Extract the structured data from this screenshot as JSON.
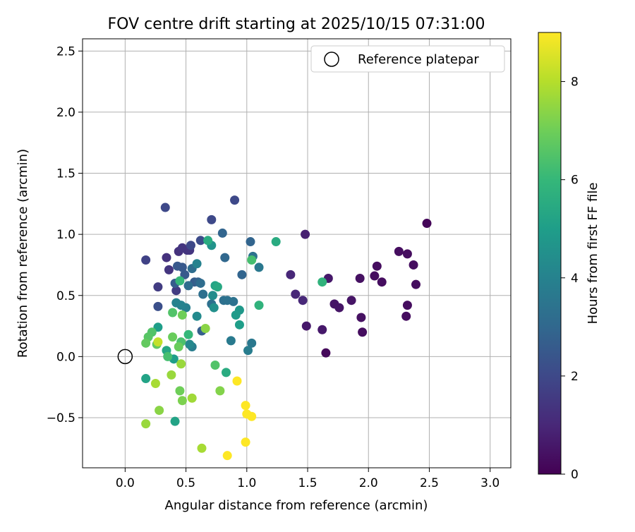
{
  "chart_data": {
    "type": "scatter",
    "title": "FOV centre drift starting at 2025/10/15 07:31:00",
    "xlabel": "Angular distance from reference (arcmin)",
    "ylabel": "Rotation from reference (arcmin)",
    "xlim": [
      -0.35,
      3.17
    ],
    "ylim": [
      -0.91,
      2.6
    ],
    "xticks": [
      0.0,
      0.5,
      1.0,
      1.5,
      2.0,
      2.5,
      3.0
    ],
    "xtick_labels": [
      "0.0",
      "0.5",
      "1.0",
      "1.5",
      "2.0",
      "2.5",
      "3.0"
    ],
    "yticks": [
      -0.5,
      0.0,
      0.5,
      1.0,
      1.5,
      2.0,
      2.5
    ],
    "ytick_labels": [
      "−0.5",
      "0.0",
      "0.5",
      "1.0",
      "1.5",
      "2.0",
      "2.5"
    ],
    "grid": true,
    "legend": {
      "position": "top-right",
      "entries": [
        {
          "label": "Reference platepar",
          "marker": "open-circle"
        }
      ]
    },
    "reference_point": {
      "x": 0.0,
      "y": 0.0
    },
    "colorbar": {
      "label": "Hours from first FF file",
      "range": [
        0,
        9
      ],
      "ticks": [
        0,
        2,
        4,
        6,
        8
      ],
      "tick_labels": [
        "0",
        "2",
        "4",
        "6",
        "8"
      ],
      "colormap": [
        "#440154",
        "#482878",
        "#3e4989",
        "#31688e",
        "#26828e",
        "#1f9e89",
        "#35b779",
        "#6ece58",
        "#b5de2b",
        "#fde725"
      ]
    },
    "points": [
      {
        "x": 2.48,
        "y": 1.09,
        "t": 0.1
      },
      {
        "x": 1.65,
        "y": 0.03,
        "t": 0.2
      },
      {
        "x": 2.32,
        "y": 0.84,
        "t": 0.3
      },
      {
        "x": 2.25,
        "y": 0.86,
        "t": 0.3
      },
      {
        "x": 2.37,
        "y": 0.75,
        "t": 0.3
      },
      {
        "x": 2.07,
        "y": 0.74,
        "t": 0.3
      },
      {
        "x": 2.05,
        "y": 0.66,
        "t": 0.3
      },
      {
        "x": 2.11,
        "y": 0.61,
        "t": 0.3
      },
      {
        "x": 2.39,
        "y": 0.59,
        "t": 0.3
      },
      {
        "x": 1.93,
        "y": 0.64,
        "t": 0.4
      },
      {
        "x": 2.32,
        "y": 0.42,
        "t": 0.3
      },
      {
        "x": 2.31,
        "y": 0.33,
        "t": 0.3
      },
      {
        "x": 1.95,
        "y": 0.2,
        "t": 0.3
      },
      {
        "x": 1.94,
        "y": 0.32,
        "t": 0.4
      },
      {
        "x": 1.86,
        "y": 0.46,
        "t": 0.5
      },
      {
        "x": 1.72,
        "y": 0.43,
        "t": 0.5
      },
      {
        "x": 1.76,
        "y": 0.4,
        "t": 0.5
      },
      {
        "x": 1.67,
        "y": 0.64,
        "t": 0.6
      },
      {
        "x": 1.62,
        "y": 0.22,
        "t": 0.6
      },
      {
        "x": 1.49,
        "y": 0.25,
        "t": 0.6
      },
      {
        "x": 1.48,
        "y": 1.0,
        "t": 0.8
      },
      {
        "x": 1.36,
        "y": 0.67,
        "t": 1.0
      },
      {
        "x": 1.4,
        "y": 0.51,
        "t": 1.0
      },
      {
        "x": 1.46,
        "y": 0.46,
        "t": 1.0
      },
      {
        "x": 0.34,
        "y": 0.81,
        "t": 1.3
      },
      {
        "x": 0.44,
        "y": 0.86,
        "t": 1.3
      },
      {
        "x": 0.47,
        "y": 0.89,
        "t": 1.4
      },
      {
        "x": 0.51,
        "y": 0.87,
        "t": 1.4
      },
      {
        "x": 0.53,
        "y": 0.87,
        "t": 1.4
      },
      {
        "x": 0.36,
        "y": 0.71,
        "t": 1.4
      },
      {
        "x": 0.27,
        "y": 0.57,
        "t": 1.6
      },
      {
        "x": 0.42,
        "y": 0.54,
        "t": 1.6
      },
      {
        "x": 0.17,
        "y": 0.79,
        "t": 1.8
      },
      {
        "x": 0.33,
        "y": 1.22,
        "t": 2.0
      },
      {
        "x": 0.9,
        "y": 1.28,
        "t": 2.0
      },
      {
        "x": 0.71,
        "y": 1.12,
        "t": 2.0
      },
      {
        "x": 0.54,
        "y": 0.91,
        "t": 2.0
      },
      {
        "x": 0.62,
        "y": 0.95,
        "t": 2.1
      },
      {
        "x": 0.27,
        "y": 0.41,
        "t": 2.2
      },
      {
        "x": 0.47,
        "y": 0.73,
        "t": 2.5
      },
      {
        "x": 0.43,
        "y": 0.74,
        "t": 2.5
      },
      {
        "x": 0.49,
        "y": 0.67,
        "t": 2.5
      },
      {
        "x": 0.41,
        "y": 0.6,
        "t": 2.6
      },
      {
        "x": 0.57,
        "y": 0.61,
        "t": 2.6
      },
      {
        "x": 0.6,
        "y": 0.61,
        "t": 2.8
      },
      {
        "x": 0.63,
        "y": 0.21,
        "t": 2.7
      },
      {
        "x": 0.96,
        "y": 0.67,
        "t": 2.9
      },
      {
        "x": 1.03,
        "y": 0.94,
        "t": 2.9
      },
      {
        "x": 0.8,
        "y": 1.01,
        "t": 2.9
      },
      {
        "x": 0.82,
        "y": 0.81,
        "t": 3.0
      },
      {
        "x": 0.55,
        "y": 0.72,
        "t": 3.2
      },
      {
        "x": 0.52,
        "y": 0.58,
        "t": 3.2
      },
      {
        "x": 0.62,
        "y": 0.6,
        "t": 3.2
      },
      {
        "x": 0.64,
        "y": 0.51,
        "t": 3.3
      },
      {
        "x": 0.71,
        "y": 0.43,
        "t": 3.3
      },
      {
        "x": 0.81,
        "y": 0.46,
        "t": 3.3
      },
      {
        "x": 0.84,
        "y": 0.46,
        "t": 3.4
      },
      {
        "x": 0.89,
        "y": 0.45,
        "t": 3.4
      },
      {
        "x": 1.05,
        "y": 0.82,
        "t": 3.4
      },
      {
        "x": 1.1,
        "y": 0.73,
        "t": 3.6
      },
      {
        "x": 1.04,
        "y": 0.11,
        "t": 3.6
      },
      {
        "x": 0.87,
        "y": 0.13,
        "t": 3.7
      },
      {
        "x": 1.01,
        "y": 0.05,
        "t": 3.8
      },
      {
        "x": 0.55,
        "y": 0.08,
        "t": 3.8
      },
      {
        "x": 0.5,
        "y": 0.4,
        "t": 3.9
      },
      {
        "x": 0.46,
        "y": 0.42,
        "t": 4.0
      },
      {
        "x": 0.42,
        "y": 0.44,
        "t": 4.0
      },
      {
        "x": 0.59,
        "y": 0.76,
        "t": 4.0
      },
      {
        "x": 0.53,
        "y": 0.1,
        "t": 4.2
      },
      {
        "x": 0.59,
        "y": 0.33,
        "t": 4.3
      },
      {
        "x": 0.72,
        "y": 0.5,
        "t": 4.4
      },
      {
        "x": 0.73,
        "y": 0.4,
        "t": 4.5
      },
      {
        "x": 0.71,
        "y": 0.91,
        "t": 4.6
      },
      {
        "x": 0.94,
        "y": 0.38,
        "t": 4.8
      },
      {
        "x": 0.91,
        "y": 0.34,
        "t": 4.9
      },
      {
        "x": 0.94,
        "y": 0.26,
        "t": 5.0
      },
      {
        "x": 0.27,
        "y": 0.24,
        "t": 5.0
      },
      {
        "x": 0.4,
        "y": -0.02,
        "t": 5.0
      },
      {
        "x": 0.41,
        "y": -0.53,
        "t": 5.2
      },
      {
        "x": 0.17,
        "y": -0.18,
        "t": 5.2
      },
      {
        "x": 0.34,
        "y": 0.05,
        "t": 5.3
      },
      {
        "x": 0.74,
        "y": 0.58,
        "t": 5.2
      },
      {
        "x": 0.76,
        "y": 0.57,
        "t": 5.4
      },
      {
        "x": 0.68,
        "y": 0.95,
        "t": 5.5
      },
      {
        "x": 0.83,
        "y": -0.13,
        "t": 5.5
      },
      {
        "x": 1.24,
        "y": 0.94,
        "t": 5.5
      },
      {
        "x": 1.62,
        "y": 0.61,
        "t": 5.8
      },
      {
        "x": 1.1,
        "y": 0.42,
        "t": 5.8
      },
      {
        "x": 0.45,
        "y": 0.62,
        "t": 6.0
      },
      {
        "x": 0.52,
        "y": 0.18,
        "t": 6.0
      },
      {
        "x": 0.35,
        "y": 0.0,
        "t": 6.3
      },
      {
        "x": 1.04,
        "y": 0.79,
        "t": 6.3
      },
      {
        "x": 0.74,
        "y": -0.07,
        "t": 6.5
      },
      {
        "x": 0.46,
        "y": 0.12,
        "t": 6.4
      },
      {
        "x": 0.39,
        "y": 0.36,
        "t": 6.5
      },
      {
        "x": 0.22,
        "y": 0.2,
        "t": 6.5
      },
      {
        "x": 0.19,
        "y": 0.16,
        "t": 6.6
      },
      {
        "x": 0.17,
        "y": 0.11,
        "t": 6.8
      },
      {
        "x": 0.26,
        "y": 0.1,
        "t": 6.8
      },
      {
        "x": 0.39,
        "y": 0.16,
        "t": 6.9
      },
      {
        "x": 0.44,
        "y": 0.08,
        "t": 6.9
      },
      {
        "x": 0.47,
        "y": 0.34,
        "t": 7.0
      },
      {
        "x": 0.45,
        "y": -0.28,
        "t": 7.0
      },
      {
        "x": 0.47,
        "y": -0.36,
        "t": 7.2
      },
      {
        "x": 0.66,
        "y": 0.23,
        "t": 7.4
      },
      {
        "x": 0.78,
        "y": -0.28,
        "t": 7.3
      },
      {
        "x": 0.28,
        "y": -0.44,
        "t": 7.4
      },
      {
        "x": 0.17,
        "y": -0.55,
        "t": 7.6
      },
      {
        "x": 0.38,
        "y": -0.15,
        "t": 7.6
      },
      {
        "x": 0.46,
        "y": -0.06,
        "t": 7.6
      },
      {
        "x": 0.55,
        "y": -0.34,
        "t": 7.7
      },
      {
        "x": 0.25,
        "y": -0.22,
        "t": 7.8
      },
      {
        "x": 0.63,
        "y": -0.75,
        "t": 7.8
      },
      {
        "x": 0.27,
        "y": 0.12,
        "t": 8.2
      },
      {
        "x": 0.92,
        "y": -0.2,
        "t": 9.0
      },
      {
        "x": 0.99,
        "y": -0.4,
        "t": 9.0
      },
      {
        "x": 1.0,
        "y": -0.47,
        "t": 9.0
      },
      {
        "x": 1.04,
        "y": -0.49,
        "t": 9.0
      },
      {
        "x": 0.99,
        "y": -0.7,
        "t": 9.0
      },
      {
        "x": 0.84,
        "y": -0.81,
        "t": 9.0
      }
    ]
  }
}
